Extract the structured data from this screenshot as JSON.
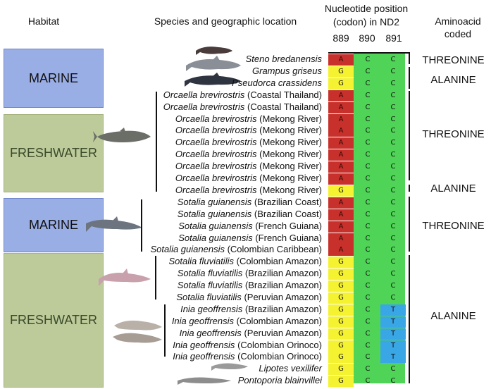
{
  "header": {
    "habitat": "Habitat",
    "species": "Species and geographic location",
    "nucleotide_line1": "Nucleotide position",
    "nucleotide_line2": "(codon) in ND2",
    "pos1": "889",
    "pos2": "890",
    "pos3": "891",
    "aa_line1": "Aminoacid",
    "aa_line2": "coded"
  },
  "habitats": [
    {
      "label": "MARINE"
    },
    {
      "label": "FRESHWATER"
    },
    {
      "label": "MARINE"
    },
    {
      "label": "FRESHWATER"
    }
  ],
  "rows": [
    {
      "species": "Steno bredanensis",
      "location": "",
      "n1": "A",
      "n2": "C",
      "n3": "C"
    },
    {
      "species": "Grampus griseus",
      "location": "",
      "n1": "G",
      "n2": "C",
      "n3": "C"
    },
    {
      "species": "Pseudorca crassidens",
      "location": "",
      "n1": "G",
      "n2": "C",
      "n3": "C"
    },
    {
      "species": "Orcaella brevirostris",
      "location": "(Coastal Thailand)",
      "n1": "A",
      "n2": "C",
      "n3": "C"
    },
    {
      "species": "Orcaella brevirostris",
      "location": "(Coastal Thailand)",
      "n1": "A",
      "n2": "C",
      "n3": "C"
    },
    {
      "species": "Orcaella brevirostris",
      "location": "(Mekong River)",
      "n1": "A",
      "n2": "C",
      "n3": "C"
    },
    {
      "species": "Orcaella brevirostris",
      "location": "(Mekong River)",
      "n1": "A",
      "n2": "C",
      "n3": "C"
    },
    {
      "species": "Orcaella brevirostris",
      "location": "(Mekong River)",
      "n1": "A",
      "n2": "C",
      "n3": "C"
    },
    {
      "species": "Orcaella brevirostris",
      "location": "(Mekong River)",
      "n1": "A",
      "n2": "C",
      "n3": "C"
    },
    {
      "species": "Orcaella brevirostris",
      "location": "(Mekong River)",
      "n1": "A",
      "n2": "C",
      "n3": "C"
    },
    {
      "species": "Orcaella brevirostris",
      "location": "(Mekong River)",
      "n1": "A",
      "n2": "C",
      "n3": "C"
    },
    {
      "species": "Orcaella brevirostris",
      "location": "(Mekong River)",
      "n1": "G",
      "n2": "C",
      "n3": "C"
    },
    {
      "species": "Sotalia guianensis",
      "location": "(Brazilian Coast)",
      "n1": "A",
      "n2": "C",
      "n3": "C"
    },
    {
      "species": "Sotalia guianensis",
      "location": "(Brazilian Coast)",
      "n1": "A",
      "n2": "C",
      "n3": "C"
    },
    {
      "species": "Sotalia guianensis",
      "location": "(French Guiana)",
      "n1": "A",
      "n2": "C",
      "n3": "C"
    },
    {
      "species": "Sotalia guianensis",
      "location": "(French Guiana)",
      "n1": "A",
      "n2": "C",
      "n3": "C"
    },
    {
      "species": "Sotalia guianensis",
      "location": "(Colombian Caribbean)",
      "n1": "A",
      "n2": "C",
      "n3": "C"
    },
    {
      "species": "Sotalia fluviatilis",
      "location": "(Colombian Amazon)",
      "n1": "G",
      "n2": "C",
      "n3": "C"
    },
    {
      "species": "Sotalia fluviatilis",
      "location": "(Brazilian Amazon)",
      "n1": "G",
      "n2": "C",
      "n3": "C"
    },
    {
      "species": "Sotalia fluviatilis",
      "location": "(Brazilian Amazon)",
      "n1": "G",
      "n2": "C",
      "n3": "C"
    },
    {
      "species": "Sotalia fluviatilis",
      "location": "(Peruvian Amazon)",
      "n1": "G",
      "n2": "C",
      "n3": "C"
    },
    {
      "species": "Inia geoffrensis",
      "location": "(Brazilian Amazon)",
      "n1": "G",
      "n2": "C",
      "n3": "T"
    },
    {
      "species": "Inia geoffrensis",
      "location": "(Colombian Amazon)",
      "n1": "G",
      "n2": "C",
      "n3": "T"
    },
    {
      "species": "Inia geoffrensis",
      "location": "(Peruvian Amazon)",
      "n1": "G",
      "n2": "C",
      "n3": "T"
    },
    {
      "species": "Inia geoffrensis",
      "location": "(Colombian Orinoco)",
      "n1": "G",
      "n2": "C",
      "n3": "T"
    },
    {
      "species": "Inia geoffrensis",
      "location": "(Colombian Orinoco)",
      "n1": "G",
      "n2": "C",
      "n3": "T"
    },
    {
      "species": "Lipotes vexilifer",
      "location": "",
      "n1": "G",
      "n2": "C",
      "n3": "C"
    },
    {
      "species": "Pontoporia blainvillei",
      "location": "",
      "n1": "G",
      "n2": "C",
      "n3": "C"
    }
  ],
  "aminoacids": [
    {
      "label": "THREONINE"
    },
    {
      "label": "ALANINE"
    },
    {
      "label": "THREONINE"
    },
    {
      "label": "ALANINE"
    },
    {
      "label": "THREONINE"
    },
    {
      "label": "ALANINE"
    }
  ],
  "colors": {
    "A": "#c8312b",
    "G": "#f5f232",
    "C": "#4fd457",
    "T": "#39a6e6",
    "marine": "#9aaee6",
    "freshwater": "#bdcb9a"
  }
}
